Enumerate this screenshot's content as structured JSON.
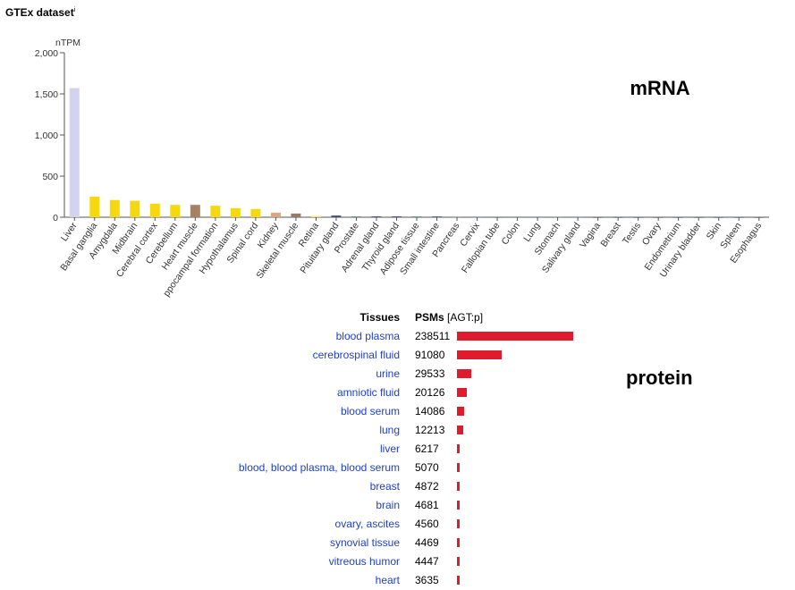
{
  "header": {
    "title": "GTEx dataset",
    "info_marker": "i"
  },
  "labels": {
    "mrna": "mRNA",
    "protein": "protein"
  },
  "colors": {
    "liver": "#d3d3ef",
    "brain": "#f5d80f",
    "muscle": "#a88260",
    "kidney": "#e0a47c",
    "skeletal_muscle": "#9a7a62",
    "retina": "#f3e16a",
    "endocrine": "#3c4a80",
    "other": "#3c6e86",
    "psm_bar": "#e01b2e",
    "link": "#1f3fc7"
  },
  "chart_data": [
    {
      "type": "bar",
      "title": "",
      "ylabel": "nTPM",
      "xlabel": "",
      "ylim": [
        0,
        2000
      ],
      "yticks": [
        "0",
        "500",
        "1,000",
        "1,500",
        "2,000"
      ],
      "yticks_values": [
        0,
        500,
        1000,
        1500,
        2000
      ],
      "grid": false,
      "categories": [
        "Liver",
        "Basal ganglia",
        "Amygdala",
        "Midbrain",
        "Cerebral cortex",
        "Cerebellum",
        "Heart muscle",
        "Hippocampal formation",
        "Hypothalamus",
        "Spinal cord",
        "Kidney",
        "Skeletal muscle",
        "Retina",
        "Pituitary gland",
        "Prostate",
        "Adrenal gland",
        "Thyroid gland",
        "Adipose tissue",
        "Small intestine",
        "Pancreas",
        "Cervix",
        "Fallopian tube",
        "Colon",
        "Lung",
        "Stomach",
        "Salivary gland",
        "Vagina",
        "Breast",
        "Testis",
        "Ovary",
        "Endometrium",
        "Urinary bladder",
        "Skin",
        "Spleen",
        "Esophagus"
      ],
      "category_labels_shown": [
        "Liver",
        "Basal ganglia",
        "Amygdala",
        "Midbrain",
        "Cerebral cortex",
        "Cerebellum",
        "Heart muscle",
        "ppocampal formation",
        "Hypothalamus",
        "Spinal cord",
        "Kidney",
        "Skeletal muscle",
        "Retina",
        "Pituitary gland",
        "Prostate",
        "Adrenal gland",
        "Thyroid gland",
        "Adipose tissue",
        "Small intestine",
        "Pancreas",
        "Cervix",
        "Fallopian tube",
        "Colon",
        "Lung",
        "Stomach",
        "Salivary gland",
        "Vagina",
        "Breast",
        "Testis",
        "Ovary",
        "Endometrium",
        "Urinary bladder",
        "Skin",
        "Spleen",
        "Esophagus"
      ],
      "values": [
        1570,
        250,
        210,
        200,
        165,
        150,
        150,
        140,
        110,
        100,
        55,
        45,
        15,
        20,
        8,
        10,
        10,
        8,
        10,
        5,
        3,
        2,
        6,
        6,
        5,
        3,
        1,
        1,
        1,
        1,
        1,
        1,
        1,
        1,
        1
      ],
      "bar_color_keys": [
        "liver",
        "brain",
        "brain",
        "brain",
        "brain",
        "brain",
        "muscle",
        "brain",
        "brain",
        "brain",
        "kidney",
        "skeletal_muscle",
        "retina",
        "endocrine",
        "other",
        "endocrine",
        "endocrine",
        "other",
        "other",
        "other",
        "other",
        "other",
        "other",
        "other",
        "other",
        "other",
        "other",
        "other",
        "other",
        "other",
        "other",
        "other",
        "other",
        "other",
        "other"
      ]
    },
    {
      "type": "bar",
      "title": "",
      "orientation": "horizontal",
      "column_headers": {
        "tissues": "Tissues",
        "psms": "PSMs",
        "psms_unit": "[AGT:p]"
      },
      "categories": [
        "blood plasma",
        "cerebrospinal fluid",
        "urine",
        "amniotic fluid",
        "blood serum",
        "lung",
        "liver",
        "blood, blood plasma, blood serum",
        "breast",
        "brain",
        "ovary, ascites",
        "synovial tissue",
        "vitreous humor",
        "heart"
      ],
      "values": [
        238511,
        91080,
        29533,
        20126,
        14086,
        12213,
        6217,
        5070,
        4872,
        4681,
        4560,
        4469,
        4447,
        3635
      ],
      "value_labels": [
        "238511",
        "91080",
        "29533",
        "20126",
        "14086",
        "12213",
        "6217",
        "5070",
        "4872",
        "4681",
        "4560",
        "4469",
        "4447",
        "3635"
      ]
    }
  ]
}
